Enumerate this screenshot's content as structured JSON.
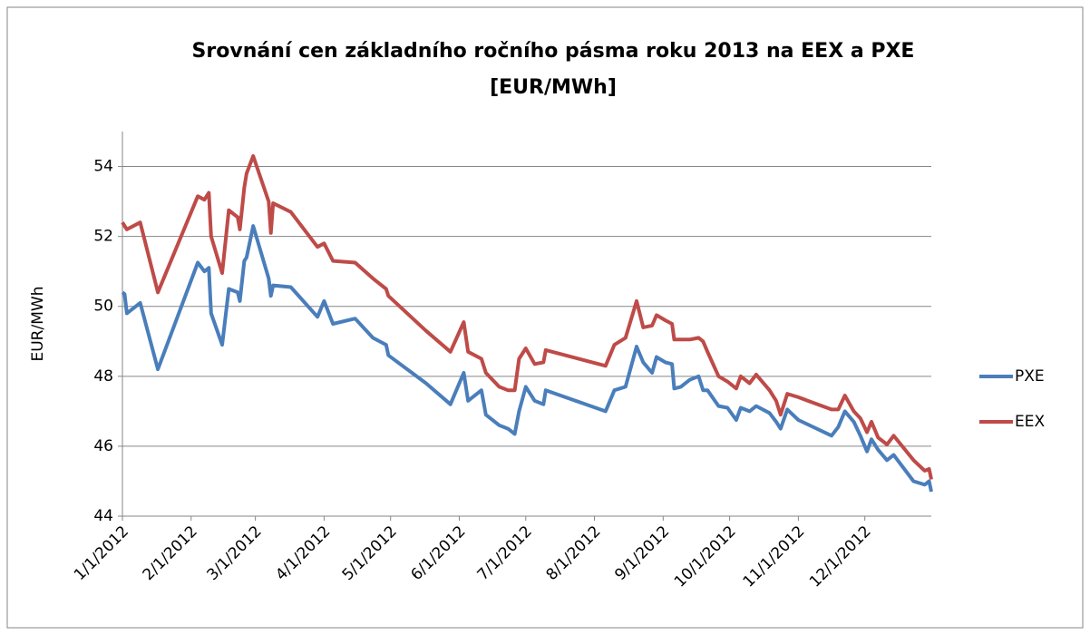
{
  "chart_data": {
    "type": "line",
    "title": [
      "Srovnání cen základního ročního pásma roku 2013 na EEX a PXE",
      "[EUR/MWh]"
    ],
    "y_label": "EUR/MWh",
    "x": [
      "2012-01-01",
      "2012-01-02",
      "2012-01-03",
      "2012-01-09",
      "2012-01-17",
      "2012-02-04",
      "2012-02-07",
      "2012-02-09",
      "2012-02-10",
      "2012-02-15",
      "2012-02-18",
      "2012-02-22",
      "2012-02-23",
      "2012-02-25",
      "2012-02-26",
      "2012-02-29",
      "2012-03-07",
      "2012-03-08",
      "2012-03-09",
      "2012-03-17",
      "2012-03-29",
      "2012-04-01",
      "2012-04-05",
      "2012-04-15",
      "2012-04-23",
      "2012-04-29",
      "2012-04-30",
      "2012-05-17",
      "2012-05-28",
      "2012-06-03",
      "2012-06-05",
      "2012-06-11",
      "2012-06-13",
      "2012-06-19",
      "2012-06-23",
      "2012-06-26",
      "2012-06-28",
      "2012-07-01",
      "2012-07-05",
      "2012-07-09",
      "2012-07-10",
      "2012-08-06",
      "2012-08-10",
      "2012-08-15",
      "2012-08-20",
      "2012-08-23",
      "2012-08-27",
      "2012-08-29",
      "2012-09-02",
      "2012-09-05",
      "2012-09-06",
      "2012-09-09",
      "2012-09-13",
      "2012-09-17",
      "2012-09-19",
      "2012-09-21",
      "2012-09-26",
      "2012-09-30",
      "2012-10-04",
      "2012-10-06",
      "2012-10-10",
      "2012-10-13",
      "2012-10-19",
      "2012-10-22",
      "2012-10-24",
      "2012-10-27",
      "2012-11-01",
      "2012-11-16",
      "2012-11-19",
      "2012-11-22",
      "2012-11-26",
      "2012-11-29",
      "2012-12-02",
      "2012-12-04",
      "2012-12-07",
      "2012-12-11",
      "2012-12-14",
      "2012-12-23",
      "2012-12-28",
      "2012-12-30",
      "2012-12-31"
    ],
    "series": [
      {
        "name": "PXE",
        "color": "#4a7ebb",
        "values": [
          50.4,
          50.35,
          49.8,
          50.1,
          48.2,
          51.25,
          51.0,
          51.1,
          49.8,
          48.9,
          50.5,
          50.4,
          50.15,
          51.3,
          51.4,
          52.3,
          50.8,
          50.3,
          50.6,
          50.55,
          49.7,
          50.15,
          49.5,
          49.65,
          49.1,
          48.9,
          48.6,
          47.8,
          47.2,
          48.1,
          47.3,
          47.6,
          46.9,
          46.6,
          46.5,
          46.35,
          47.0,
          47.7,
          47.3,
          47.2,
          47.6,
          47.0,
          47.6,
          47.7,
          48.85,
          48.4,
          48.1,
          48.55,
          48.4,
          48.35,
          47.65,
          47.7,
          47.9,
          48.0,
          47.6,
          47.6,
          47.15,
          47.1,
          46.75,
          47.1,
          47.0,
          47.15,
          46.95,
          46.7,
          46.5,
          47.05,
          46.75,
          46.3,
          46.55,
          47.0,
          46.7,
          46.3,
          45.85,
          46.2,
          45.9,
          45.6,
          45.75,
          45.0,
          44.9,
          45.0,
          44.7
        ]
      },
      {
        "name": "EEX",
        "color": "#be4b48",
        "values": [
          52.4,
          52.3,
          52.2,
          52.4,
          50.4,
          53.15,
          53.05,
          53.25,
          52.0,
          50.95,
          52.75,
          52.55,
          52.2,
          53.4,
          53.8,
          54.3,
          53.0,
          52.1,
          52.95,
          52.7,
          51.7,
          51.8,
          51.3,
          51.25,
          50.8,
          50.5,
          50.3,
          49.3,
          48.7,
          49.55,
          48.7,
          48.5,
          48.1,
          47.7,
          47.6,
          47.6,
          48.5,
          48.8,
          48.35,
          48.4,
          48.75,
          48.3,
          48.9,
          49.1,
          50.15,
          49.4,
          49.45,
          49.75,
          49.6,
          49.5,
          49.05,
          49.05,
          49.05,
          49.1,
          49.0,
          48.7,
          48.0,
          47.85,
          47.65,
          48.0,
          47.8,
          48.05,
          47.6,
          47.3,
          46.9,
          47.5,
          47.4,
          47.05,
          47.05,
          47.45,
          47.0,
          46.8,
          46.4,
          46.7,
          46.25,
          46.05,
          46.3,
          45.6,
          45.3,
          45.35,
          45.05
        ]
      }
    ],
    "xlim": [
      "2012-01-01",
      "2012-12-31"
    ],
    "xticks": [
      {
        "value": "2012-01-01",
        "label": "1/1/2012"
      },
      {
        "value": "2012-02-01",
        "label": "2/1/2012"
      },
      {
        "value": "2012-03-01",
        "label": "3/1/2012"
      },
      {
        "value": "2012-04-01",
        "label": "4/1/2012"
      },
      {
        "value": "2012-05-01",
        "label": "5/1/2012"
      },
      {
        "value": "2012-06-01",
        "label": "6/1/2012"
      },
      {
        "value": "2012-07-01",
        "label": "7/1/2012"
      },
      {
        "value": "2012-08-01",
        "label": "8/1/2012"
      },
      {
        "value": "2012-09-01",
        "label": "9/1/2012"
      },
      {
        "value": "2012-10-01",
        "label": "10/1/2012"
      },
      {
        "value": "2012-11-01",
        "label": "11/1/2012"
      },
      {
        "value": "2012-12-01",
        "label": "12/1/2012"
      }
    ],
    "ylim": [
      44,
      55
    ],
    "yticks": [
      44,
      46,
      48,
      50,
      52,
      54
    ],
    "grid": true,
    "legend": "right"
  }
}
